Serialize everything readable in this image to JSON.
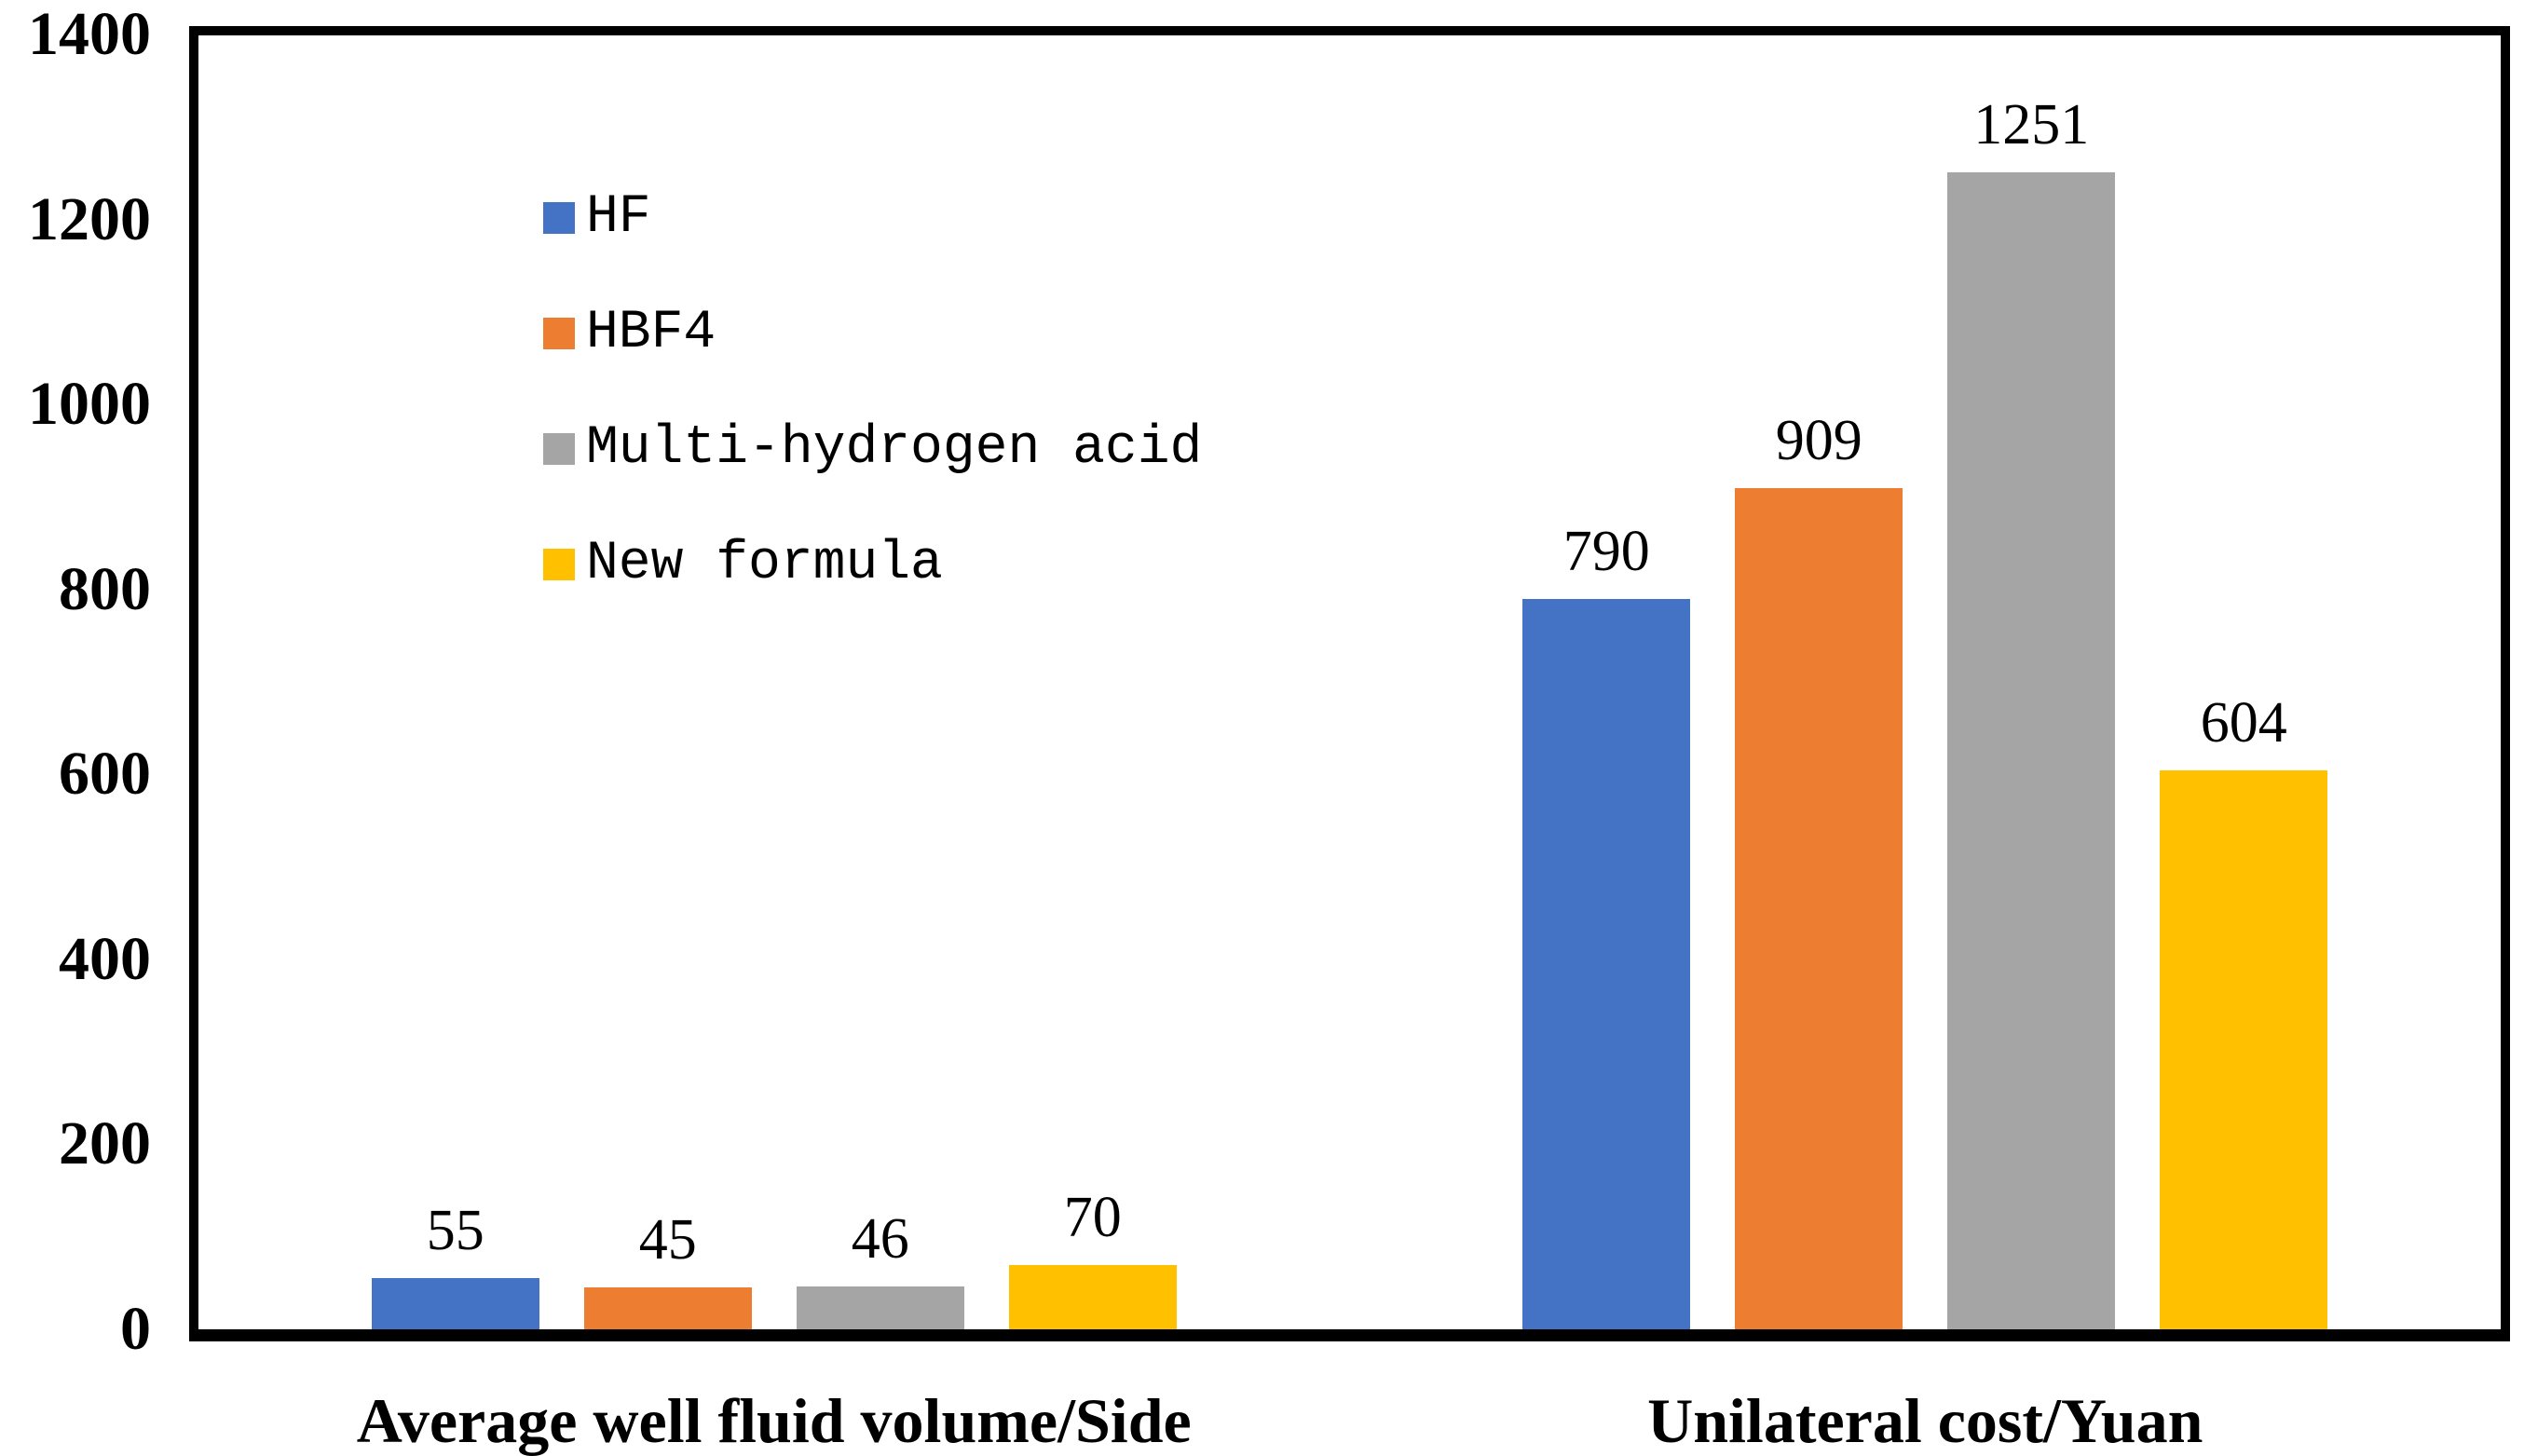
{
  "chart_data": {
    "type": "bar",
    "title": "",
    "xlabel": "",
    "ylabel": "",
    "categories": [
      "Average well fluid volume/Side",
      "Unilateral cost/Yuan"
    ],
    "series": [
      {
        "name": "HF",
        "color": "#4472C4",
        "values": [
          55,
          790
        ]
      },
      {
        "name": "HBF4",
        "color": "#ED7D31",
        "values": [
          45,
          909
        ]
      },
      {
        "name": "Multi-hydrogen acid",
        "color": "#A5A5A5",
        "values": [
          46,
          1251
        ]
      },
      {
        "name": "New formula",
        "color": "#FFC000",
        "values": [
          70,
          604
        ]
      }
    ],
    "ylim": [
      0,
      1400
    ],
    "yticks": [
      0,
      200,
      400,
      600,
      800,
      1000,
      1200,
      1400
    ],
    "grid": false,
    "data_labels": true,
    "legend_position": "upper-left-inside",
    "axis_color": "#000000",
    "plot_border_color": "#000000",
    "background_color": "#FFFFFF",
    "text_color": "#000000"
  }
}
